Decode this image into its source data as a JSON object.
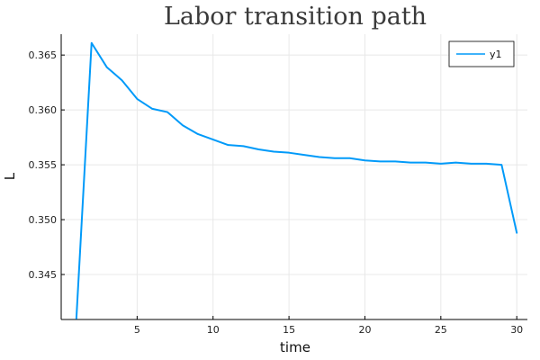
{
  "chart_data": {
    "type": "line",
    "title": "Labor transition path",
    "xlabel": "time",
    "ylabel": "L",
    "xlim": [
      0,
      30.7
    ],
    "ylim": [
      0.3409,
      0.3669
    ],
    "xticks": [
      5,
      10,
      15,
      20,
      25,
      30
    ],
    "yticks": [
      0.345,
      0.35,
      0.355,
      0.36,
      0.365
    ],
    "ytick_labels": [
      "0.345",
      "0.350",
      "0.355",
      "0.360",
      "0.365"
    ],
    "grid": true,
    "legend_position": "top-right",
    "series": [
      {
        "name": "y1",
        "color": "#009af9",
        "x": [
          1,
          2,
          3,
          4,
          5,
          6,
          7,
          8,
          9,
          10,
          11,
          12,
          13,
          14,
          15,
          16,
          17,
          18,
          19,
          20,
          21,
          22,
          23,
          24,
          25,
          26,
          27,
          28,
          29,
          30
        ],
        "values": [
          0.341,
          0.3661,
          0.3639,
          0.3627,
          0.361,
          0.3601,
          0.3598,
          0.3586,
          0.3578,
          0.3573,
          0.3568,
          0.3567,
          0.3564,
          0.3562,
          0.3561,
          0.3559,
          0.3557,
          0.3556,
          0.3556,
          0.3554,
          0.3553,
          0.3553,
          0.3552,
          0.3552,
          0.3551,
          0.3552,
          0.3551,
          0.3551,
          0.355,
          0.3488
        ]
      }
    ]
  }
}
